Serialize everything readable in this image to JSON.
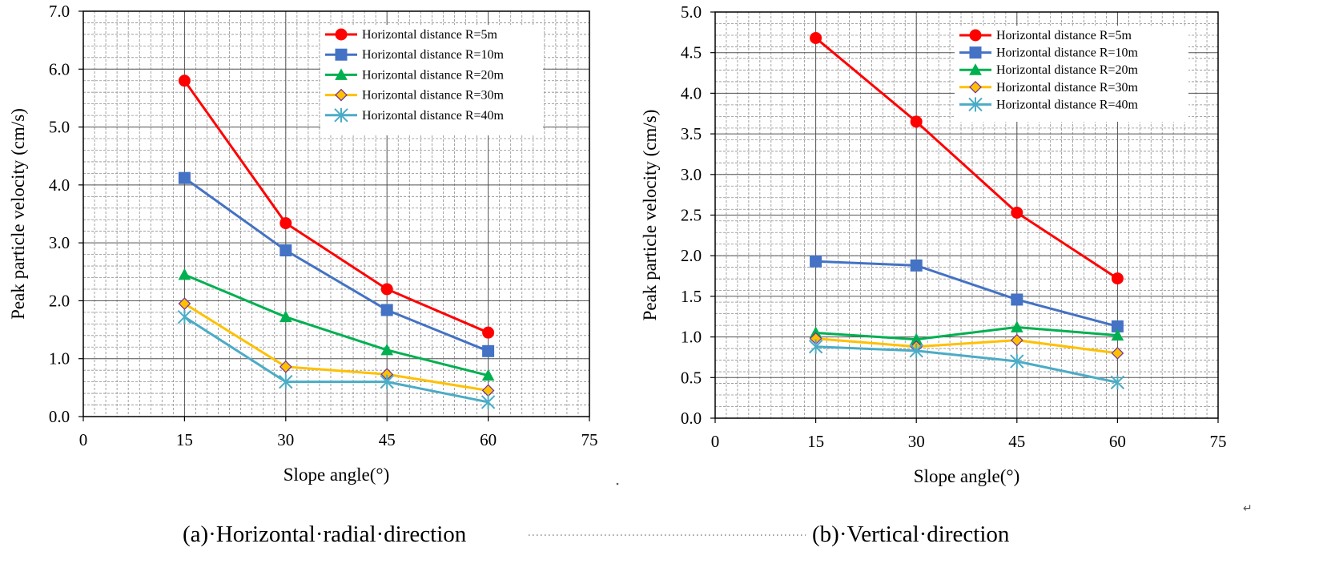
{
  "chart_data": [
    {
      "type": "line",
      "panel": "a",
      "x": [
        15,
        30,
        45,
        60
      ],
      "xlim": [
        0,
        75
      ],
      "xticks": [
        "0",
        "15",
        "30",
        "45",
        "60",
        "75"
      ],
      "ylim": [
        0,
        7
      ],
      "yticks": [
        "0.0",
        "1.0",
        "2.0",
        "3.0",
        "4.0",
        "5.0",
        "6.0",
        "7.0"
      ],
      "xlabel": "Slope angle(°)",
      "ylabel": "Peak particle velocity  (cm/s)",
      "grid": true,
      "legend_position": "top-right",
      "series": [
        {
          "name": "Horizontal distance R=5m",
          "color": "#ff0000",
          "marker": "circle",
          "values": [
            5.8,
            3.34,
            2.2,
            1.45
          ]
        },
        {
          "name": "Horizontal distance R=10m",
          "color": "#4472c4",
          "marker": "square",
          "values": [
            4.12,
            2.87,
            1.84,
            1.13
          ]
        },
        {
          "name": "Horizontal distance R=20m",
          "color": "#00b050",
          "marker": "triangle",
          "values": [
            2.45,
            1.72,
            1.15,
            0.71
          ]
        },
        {
          "name": "Horizontal distance R=30m",
          "color": "#ffc000",
          "marker": "diamond",
          "values": [
            1.95,
            0.86,
            0.73,
            0.45
          ]
        },
        {
          "name": "Horizontal distance R=40m",
          "color": "#4bacc6",
          "marker": "asterisk",
          "values": [
            1.72,
            0.6,
            0.6,
            0.25
          ]
        }
      ]
    },
    {
      "type": "line",
      "panel": "b",
      "x": [
        15,
        30,
        45,
        60
      ],
      "xlim": [
        0,
        75
      ],
      "xticks": [
        "0",
        "15",
        "30",
        "45",
        "60",
        "75"
      ],
      "ylim": [
        0,
        5
      ],
      "yticks": [
        "0.0",
        "0.5",
        "1.0",
        "1.5",
        "2.0",
        "2.5",
        "3.0",
        "3.5",
        "4.0",
        "4.5",
        "5.0"
      ],
      "xlabel": "Slope angle(°)",
      "ylabel": "Peak particle velocity  (cm/s)",
      "grid": true,
      "legend_position": "top-right",
      "series": [
        {
          "name": "Horizontal distance R=5m",
          "color": "#ff0000",
          "marker": "circle",
          "values": [
            4.68,
            3.65,
            2.53,
            1.72
          ]
        },
        {
          "name": "Horizontal distance R=10m",
          "color": "#4472c4",
          "marker": "square",
          "values": [
            1.93,
            1.88,
            1.46,
            1.13
          ]
        },
        {
          "name": "Horizontal distance R=20m",
          "color": "#00b050",
          "marker": "triangle",
          "values": [
            1.05,
            0.97,
            1.12,
            1.02
          ]
        },
        {
          "name": "Horizontal distance R=30m",
          "color": "#ffc000",
          "marker": "diamond",
          "values": [
            0.98,
            0.88,
            0.96,
            0.8
          ]
        },
        {
          "name": "Horizontal distance R=40m",
          "color": "#4bacc6",
          "marker": "asterisk",
          "values": [
            0.88,
            0.83,
            0.7,
            0.44
          ]
        }
      ]
    }
  ],
  "captions": {
    "a": "(a)·Horizontal·radial·direction",
    "b": "(b)·Vertical·direction",
    "return_mark": "↵"
  }
}
